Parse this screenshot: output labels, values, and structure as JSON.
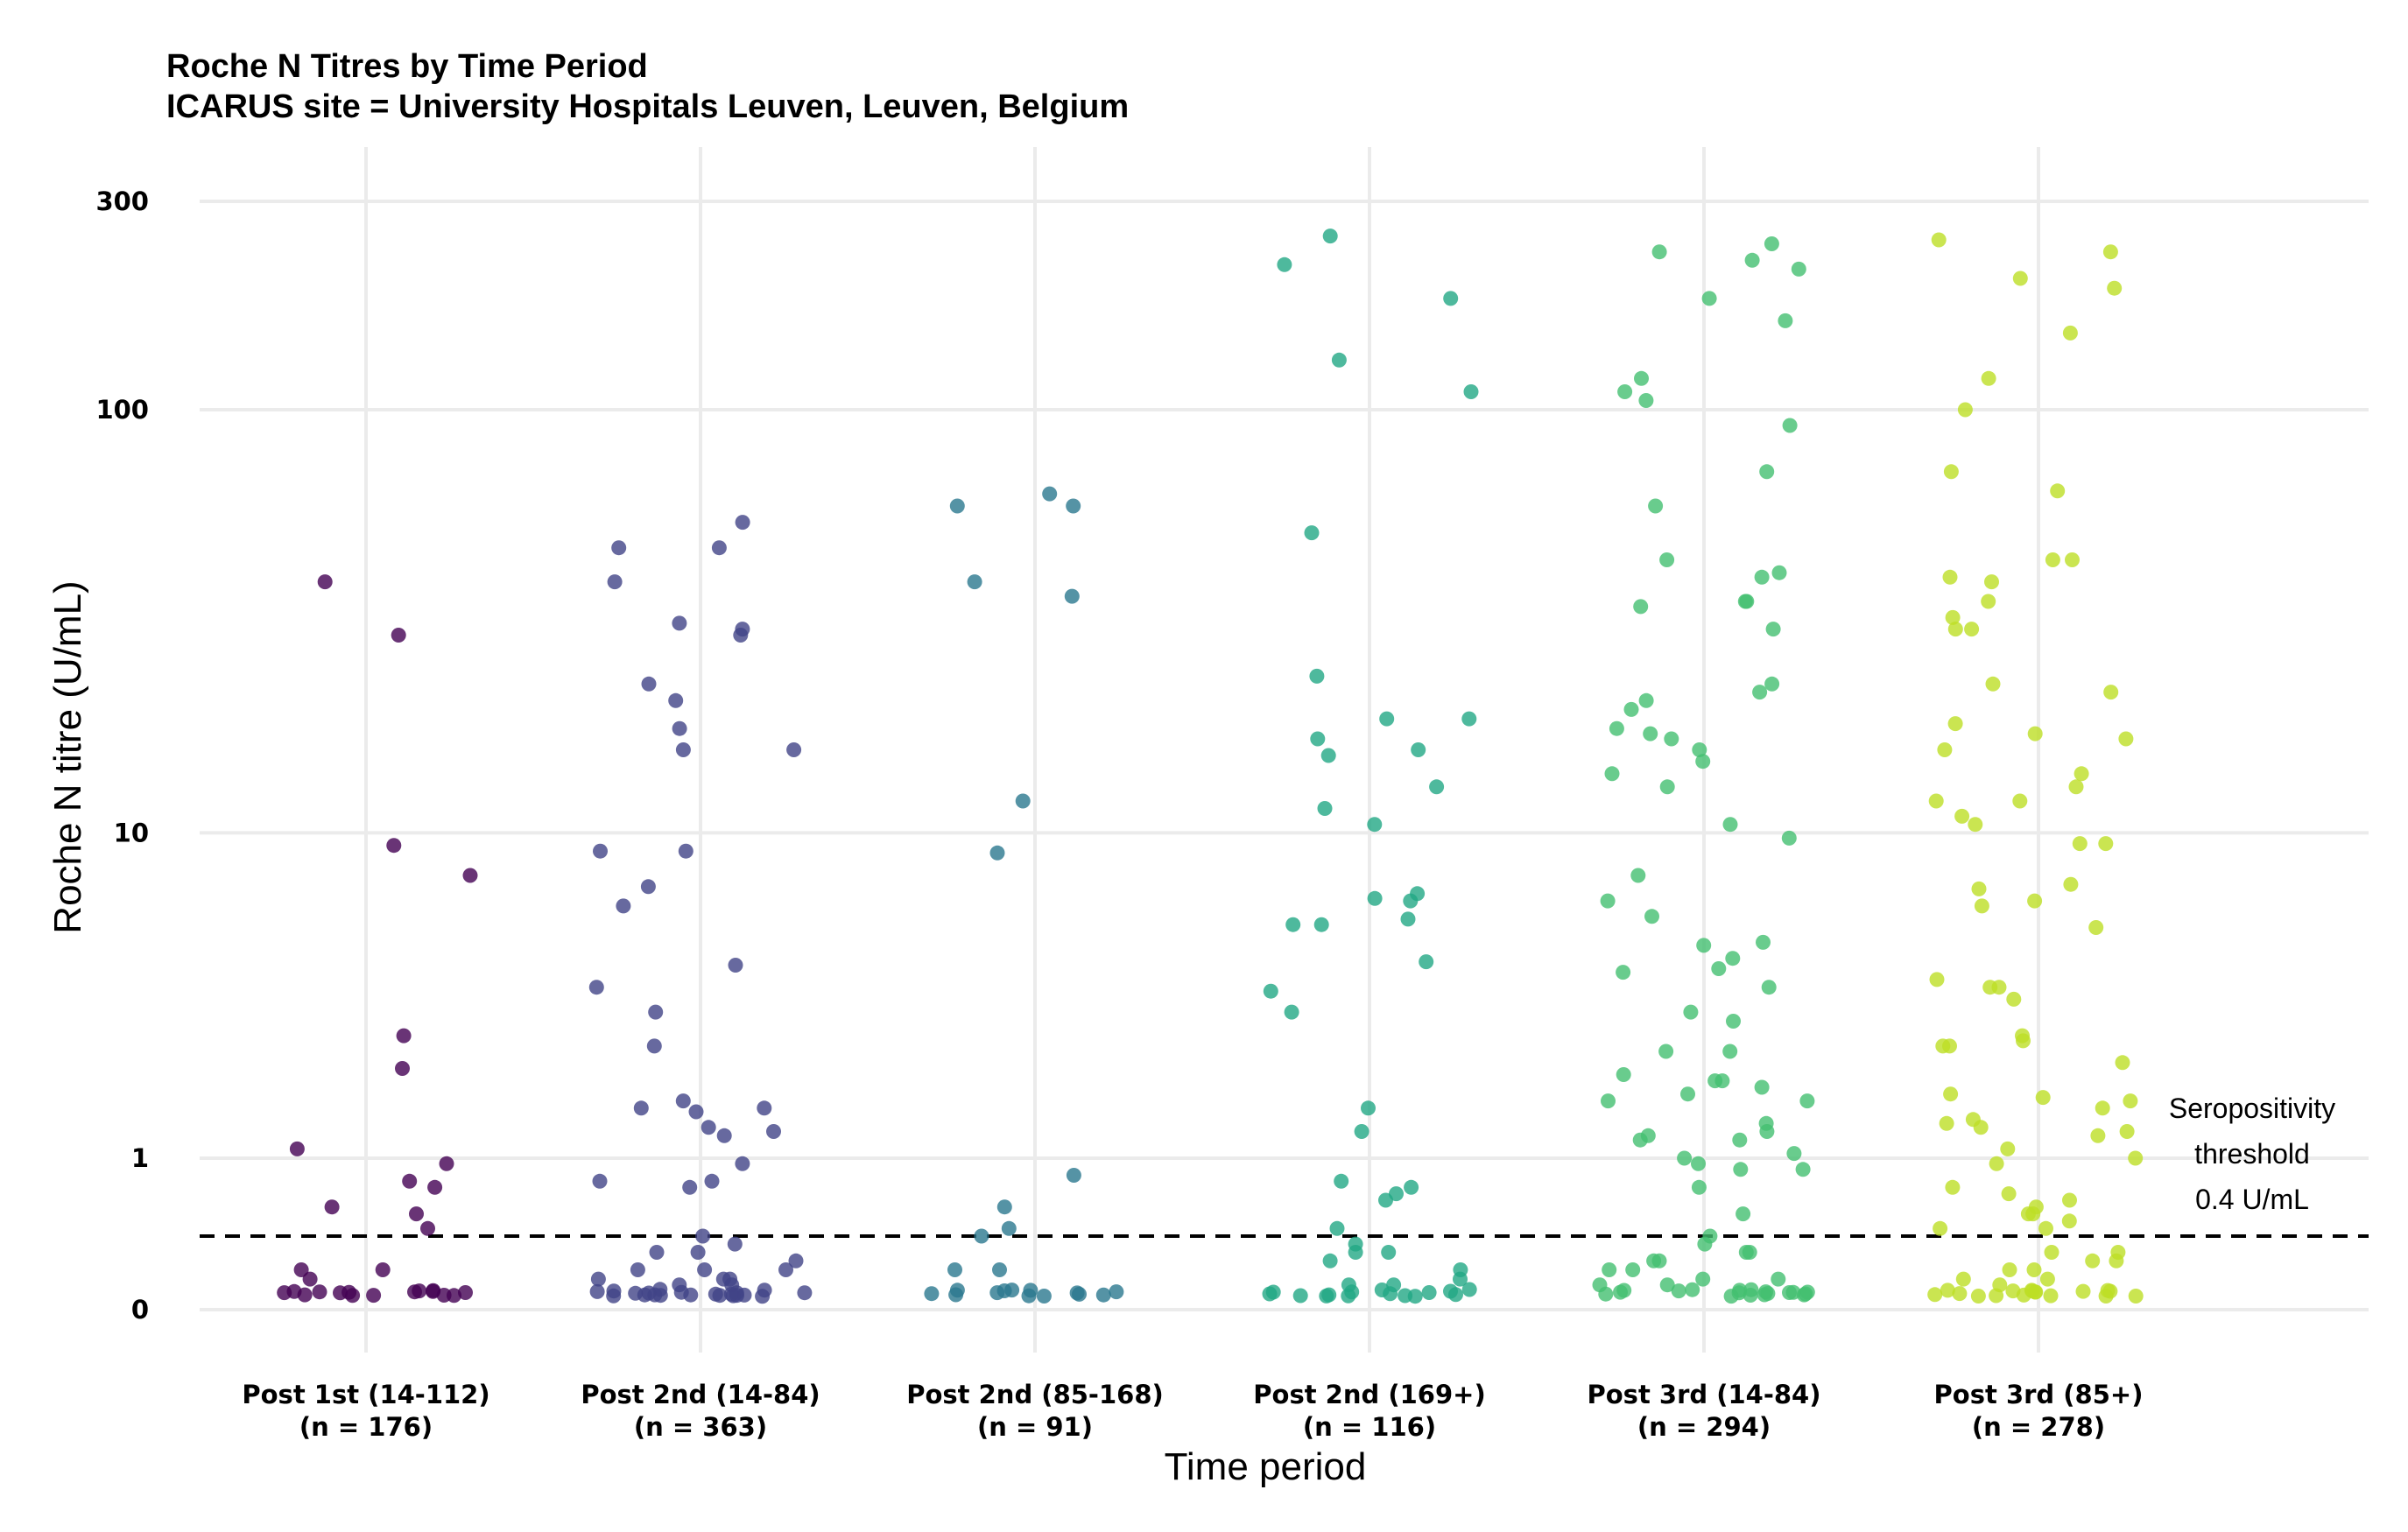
{
  "chart_data": {
    "type": "scatter",
    "title": "Roche N Titres by Time Period",
    "subtitle": "ICARUS site = University Hospitals Leuven, Leuven, Belgium",
    "xlabel": "Time period",
    "ylabel": "Roche N titre (U/mL)",
    "y_scale": "pseudo-log",
    "y_ticks": [
      0,
      1,
      10,
      100,
      300
    ],
    "y_tick_labels": [
      "0",
      "1",
      "10",
      "100",
      "300"
    ],
    "grid": true,
    "legend": "none",
    "threshold": {
      "value": 0.4,
      "style": "dashed",
      "label": [
        "Seropositivity",
        "threshold",
        "0.4 U/mL"
      ]
    },
    "categories": [
      {
        "label": "Post 1st (14-112)",
        "n_label": "(n = 176)",
        "color": "#440154"
      },
      {
        "label": "Post 2nd (14-84)",
        "n_label": "(n = 363)",
        "color": "#414487"
      },
      {
        "label": "Post 2nd (85-168)",
        "n_label": "(n = 91)",
        "color": "#2A788E"
      },
      {
        "label": "Post 2nd (169+)",
        "n_label": "(n = 116)",
        "color": "#22A884"
      },
      {
        "label": "Post 3rd (14-84)",
        "n_label": "(n = 294)",
        "color": "#43BF71"
      },
      {
        "label": "Post 3rd (85+)",
        "n_label": "(n = 278)",
        "color": "#BDDF26"
      }
    ],
    "series": [
      {
        "values": [
          30,
          40,
          9.3,
          7.8,
          2.8,
          2.2,
          1.1,
          0.95,
          0.8,
          0.75,
          0.55,
          0.6,
          0.45,
          0.2,
          0.2,
          0.15,
          0.08,
          0.08,
          0.08,
          0.08,
          0.08,
          0.08,
          0.08,
          0.08,
          0.08,
          0.08,
          0.08,
          0.08,
          0.08,
          0.08,
          0.08
        ]
      },
      {
        "values": [
          55,
          48,
          48,
          40,
          30,
          32,
          31,
          23,
          21,
          18,
          16,
          16,
          9,
          9,
          7.3,
          6.5,
          4.5,
          3.9,
          3.3,
          2.6,
          1.7,
          1.6,
          1.6,
          1.55,
          1.35,
          1.3,
          1.25,
          0.95,
          0.8,
          0.8,
          0.75,
          0.4,
          0.35,
          0.3,
          0.3,
          0.25,
          0.2,
          0.2,
          0.2,
          0.15,
          0.15,
          0.15,
          0.12,
          0.12,
          0.1,
          0.08,
          0.08,
          0.08,
          0.08,
          0.08,
          0.08,
          0.08,
          0.08,
          0.08,
          0.08,
          0.08,
          0.08,
          0.08,
          0.08,
          0.08,
          0.08,
          0.08,
          0.08,
          0.08,
          0.08
        ]
      },
      {
        "values": [
          60,
          60,
          64,
          40,
          37,
          12,
          8.9,
          0.85,
          0.6,
          0.45,
          0.4,
          0.2,
          0.2,
          0.08,
          0.08,
          0.08,
          0.08,
          0.08,
          0.08,
          0.08,
          0.08,
          0.08,
          0.08,
          0.08,
          0.08,
          0.08
        ]
      },
      {
        "values": [
          250,
          215,
          180,
          130,
          110,
          52,
          24,
          19,
          19,
          17,
          16,
          15.5,
          13,
          11.5,
          10.5,
          7,
          6.8,
          6.7,
          6,
          5.8,
          5.8,
          4.6,
          3.8,
          3.3,
          1.6,
          1.3,
          0.8,
          0.75,
          0.7,
          0.65,
          0.45,
          0.35,
          0.3,
          0.3,
          0.25,
          0.2,
          0.15,
          0.12,
          0.12,
          0.08,
          0.08,
          0.08,
          0.08,
          0.08,
          0.08,
          0.08,
          0.08,
          0.08,
          0.08,
          0.08,
          0.08,
          0.08,
          0.08,
          0.08
        ]
      },
      {
        "values": [
          230,
          240,
          220,
          210,
          180,
          160,
          118,
          110,
          105,
          92,
          72,
          60,
          45,
          42,
          41,
          36,
          36,
          35,
          31,
          23,
          22,
          21,
          20,
          18,
          17.5,
          17,
          16,
          15,
          14,
          13,
          10.5,
          9.7,
          7.8,
          6.7,
          6.1,
          5.2,
          5.1,
          4.7,
          4.4,
          4.3,
          3.9,
          3.3,
          3.1,
          2.5,
          2.5,
          2.1,
          2,
          2,
          1.9,
          1.8,
          1.7,
          1.7,
          1.4,
          1.3,
          1.25,
          1.2,
          1.2,
          1.05,
          1.0,
          0.95,
          0.9,
          0.9,
          0.75,
          0.55,
          0.4,
          0.35,
          0.3,
          0.3,
          0.25,
          0.25,
          0.2,
          0.2,
          0.15,
          0.15,
          0.12,
          0.12,
          0.1,
          0.08,
          0.08,
          0.08,
          0.08,
          0.08,
          0.08,
          0.08,
          0.08,
          0.08,
          0.08,
          0.08,
          0.08,
          0.08,
          0.08,
          0.08,
          0.08,
          0.08
        ]
      },
      {
        "values": [
          245,
          230,
          200,
          190,
          150,
          118,
          100,
          72,
          65,
          45,
          45,
          41,
          40,
          36,
          33,
          31,
          31,
          23,
          22,
          18.5,
          17.5,
          17,
          16,
          14,
          13,
          12,
          12,
          11,
          10.5,
          9.4,
          9.4,
          7.4,
          7.2,
          6.7,
          6.5,
          5.7,
          4.1,
          3.9,
          3.9,
          3.6,
          2.8,
          2.7,
          2.6,
          2.6,
          2.3,
          1.8,
          1.75,
          1.7,
          1.6,
          1.45,
          1.4,
          1.35,
          1.3,
          1.25,
          1.1,
          1.0,
          0.95,
          0.75,
          0.7,
          0.65,
          0.6,
          0.55,
          0.55,
          0.5,
          0.45,
          0.45,
          0.3,
          0.3,
          0.25,
          0.25,
          0.2,
          0.2,
          0.15,
          0.15,
          0.12,
          0.1,
          0.08,
          0.08,
          0.08,
          0.08,
          0.08,
          0.08,
          0.08,
          0.08,
          0.08,
          0.08,
          0.08,
          0.08,
          0.08,
          0.08,
          0.08,
          0.08
        ]
      }
    ]
  }
}
